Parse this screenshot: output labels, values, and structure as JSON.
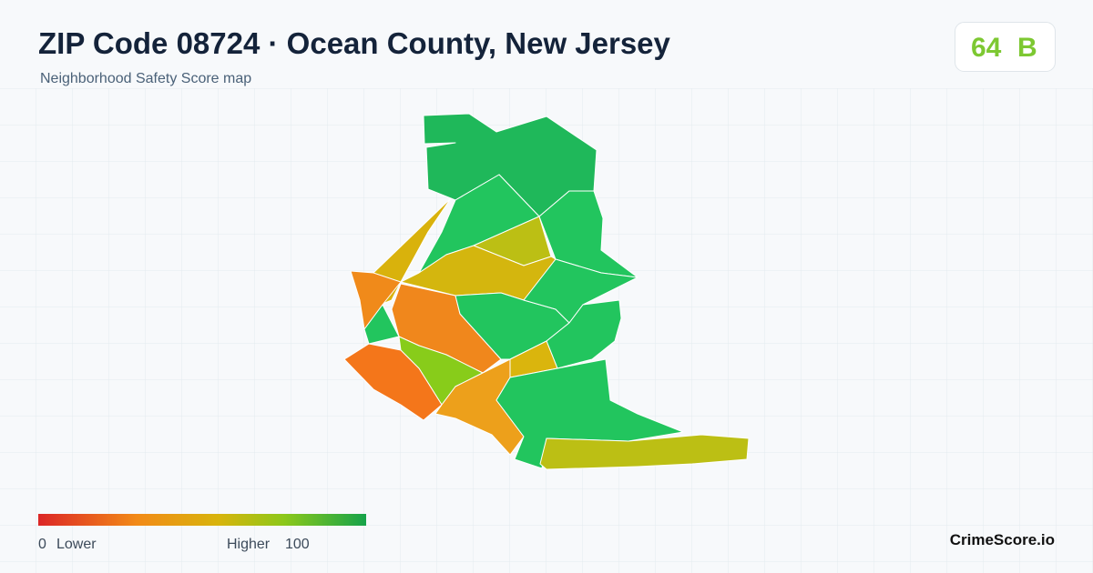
{
  "header": {
    "title": "ZIP Code 08724 · Ocean County, New Jersey",
    "subtitle": "Neighborhood Safety Score map"
  },
  "score": {
    "value": "64",
    "grade": "B"
  },
  "legend": {
    "min": "0",
    "min_label": "Lower",
    "max_label": "Higher",
    "max": "100"
  },
  "brand": "CrimeScore.io"
}
